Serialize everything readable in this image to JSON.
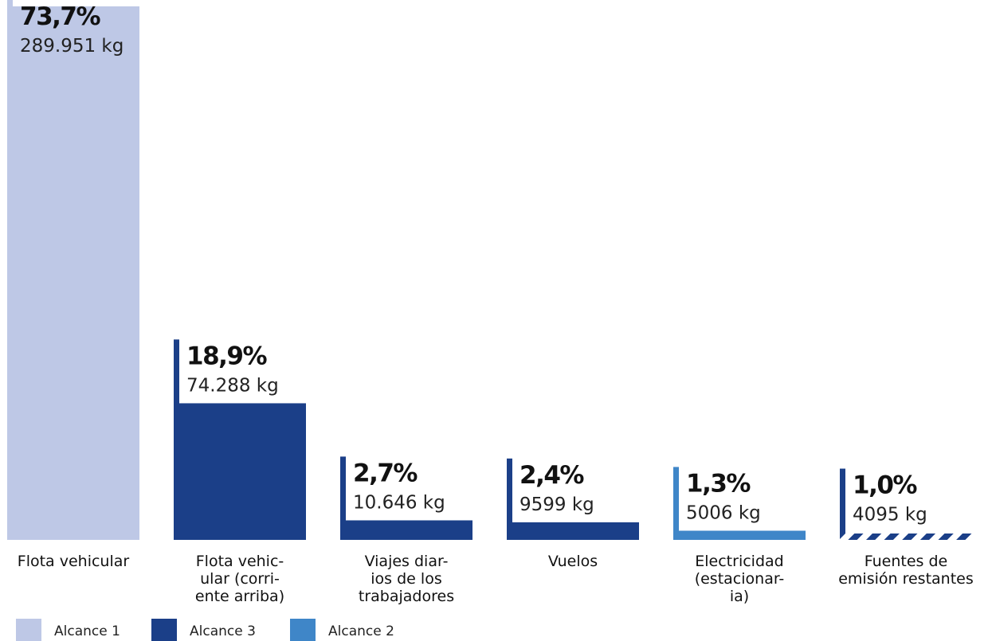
{
  "chart_data": {
    "type": "bar",
    "title": "",
    "xlabel": "",
    "ylabel": "",
    "unit": "kg",
    "ylim": [
      0,
      289951
    ],
    "grid": false,
    "legend_position": "bottom-left",
    "categories": [
      {
        "lines": [
          "Flota vehicular"
        ],
        "pct_label": "73,7%",
        "kg_label": "289.951 kg",
        "value": 289951,
        "scope": "alcance1"
      },
      {
        "lines": [
          "Flota vehic-",
          "ular (corri-",
          "ente arriba)"
        ],
        "pct_label": "18,9%",
        "kg_label": "74.288 kg",
        "value": 74288,
        "scope": "alcance3"
      },
      {
        "lines": [
          "Viajes diar-",
          "ios de los",
          "trabajadores"
        ],
        "pct_label": "2,7%",
        "kg_label": "10.646 kg",
        "value": 10646,
        "scope": "alcance3"
      },
      {
        "lines": [
          "Vuelos"
        ],
        "pct_label": "2,4%",
        "kg_label": "9599 kg",
        "value": 9599,
        "scope": "alcance3"
      },
      {
        "lines": [
          "Electricidad",
          "(estacionar-",
          "ia)"
        ],
        "pct_label": "1,3%",
        "kg_label": "5006 kg",
        "value": 5006,
        "scope": "alcance2"
      },
      {
        "lines": [
          "Fuentes de",
          "emisión restantes"
        ],
        "pct_label": "1,0%",
        "kg_label": "4095 kg",
        "value": 4095,
        "scope": "mixed"
      }
    ],
    "legend": [
      {
        "key": "alcance1",
        "label": "Alcance 1",
        "color": "#bec8e6"
      },
      {
        "key": "alcance3",
        "label": "Alcance 3",
        "color": "#1b3f88"
      },
      {
        "key": "alcance2",
        "label": "Alcance 2",
        "color": "#3f86c8"
      }
    ],
    "colors": {
      "alcance1": "#bec8e6",
      "alcance3": "#1b3f88",
      "alcance2": "#3f86c8",
      "mixed": "#1b3f88"
    }
  }
}
